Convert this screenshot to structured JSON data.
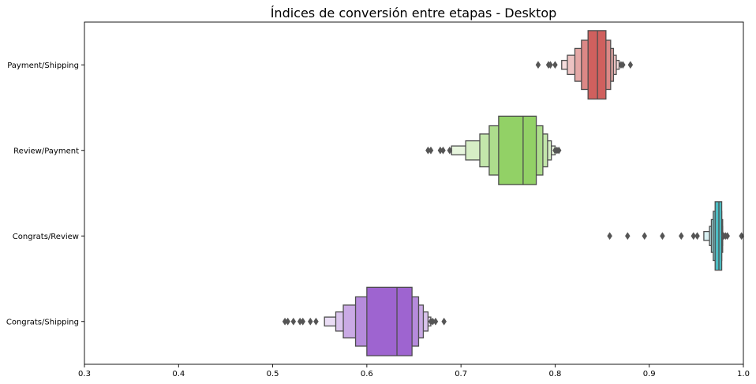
{
  "chart_data": {
    "type": "boxen",
    "orientation": "horizontal",
    "title": "Índices de conversión entre etapas - Desktop",
    "xlabel": "",
    "ylabel": "",
    "xlim": [
      0.3,
      1.0
    ],
    "xticks": [
      0.3,
      0.4,
      0.5,
      0.6,
      0.7,
      0.8,
      0.9,
      1.0
    ],
    "xtick_labels": [
      "0.3",
      "0.4",
      "0.5",
      "0.6",
      "0.7",
      "0.8",
      "0.9",
      "1.0"
    ],
    "grid": false,
    "categories": [
      "Payment/Shipping",
      "Review/Payment",
      "Congrats/Review",
      "Congrats/Shipping"
    ],
    "series": [
      {
        "category": "Payment/Shipping",
        "color": "#d0605e",
        "median": 0.845,
        "levels": [
          [
            0.835,
            0.854
          ],
          [
            0.828,
            0.859
          ],
          [
            0.821,
            0.862
          ],
          [
            0.813,
            0.865
          ],
          [
            0.807,
            0.868
          ]
        ],
        "outliers": [
          0.782,
          0.793,
          0.795,
          0.8,
          0.87,
          0.872,
          0.88
        ]
      },
      {
        "category": "Review/Payment",
        "color": "#92d166",
        "median": 0.766,
        "levels": [
          [
            0.74,
            0.78
          ],
          [
            0.73,
            0.787
          ],
          [
            0.72,
            0.792
          ],
          [
            0.705,
            0.796
          ],
          [
            0.69,
            0.8
          ]
        ],
        "outliers": [
          0.665,
          0.668,
          0.678,
          0.681,
          0.688,
          0.8,
          0.802,
          0.804
        ]
      },
      {
        "category": "Congrats/Review",
        "color": "#4dbdc3",
        "median": 0.974,
        "levels": [
          [
            0.97,
            0.977
          ],
          [
            0.968,
            0.977
          ],
          [
            0.966,
            0.978
          ],
          [
            0.964,
            0.978
          ],
          [
            0.958,
            0.978
          ]
        ],
        "outliers": [
          0.858,
          0.877,
          0.895,
          0.914,
          0.934,
          0.947,
          0.951,
          0.979,
          0.981,
          0.983,
          0.998
        ]
      },
      {
        "category": "Congrats/Shipping",
        "color": "#9e64d0",
        "median": 0.632,
        "levels": [
          [
            0.6,
            0.648
          ],
          [
            0.588,
            0.655
          ],
          [
            0.575,
            0.66
          ],
          [
            0.567,
            0.665
          ],
          [
            0.555,
            0.668
          ]
        ],
        "outliers": [
          0.513,
          0.516,
          0.522,
          0.529,
          0.532,
          0.54,
          0.546,
          0.668,
          0.67,
          0.673,
          0.682
        ]
      }
    ]
  }
}
